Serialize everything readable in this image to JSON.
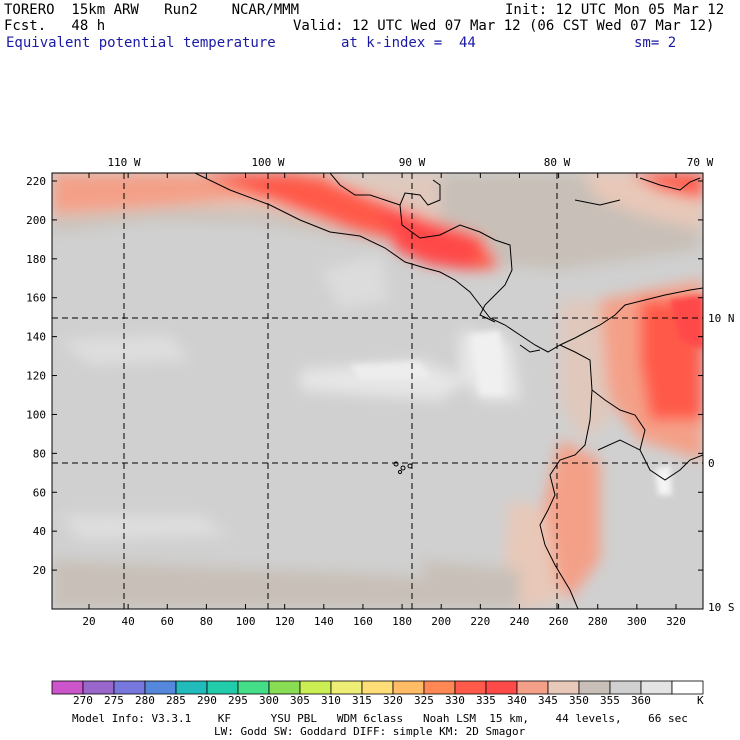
{
  "header": {
    "model": "TORERO  15km ARW   Run2    NCAR/MMM",
    "init": "Init: 12 UTC Mon 05 Mar 12",
    "fcst": "Fcst.   48 h",
    "valid": "Valid: 12 UTC Wed 07 Mar 12 (06 CST Wed 07 Mar 12)",
    "field": "Equivalent potential temperature",
    "level": "at k-index =  44",
    "smoothing": "sm= 2"
  },
  "map": {
    "top_labels": [
      "110 W",
      "100 W",
      "90 W",
      "80 W",
      "70 W"
    ],
    "right_labels": [
      "10 N",
      "0",
      "10 S"
    ],
    "y_ticks": [
      "20",
      "40",
      "60",
      "80",
      "100",
      "120",
      "140",
      "160",
      "180",
      "200",
      "220"
    ],
    "x_ticks": [
      "20",
      "40",
      "60",
      "80",
      "100",
      "120",
      "140",
      "160",
      "180",
      "200",
      "220",
      "240",
      "260",
      "280",
      "300",
      "320"
    ]
  },
  "colorbar": {
    "labels": [
      "270",
      "275",
      "280",
      "285",
      "290",
      "295",
      "300",
      "305",
      "310",
      "315",
      "320",
      "325",
      "330",
      "335",
      "340",
      "345",
      "350",
      "355",
      "360"
    ],
    "unit": "K",
    "colors": [
      "#cc55cc",
      "#9966cc",
      "#7777dd",
      "#5588dd",
      "#22bbbb",
      "#22ccaa",
      "#44dd88",
      "#88dd55",
      "#ccee55",
      "#eeee77",
      "#ffdd77",
      "#ffbb66",
      "#ff8855",
      "#ff5a4a",
      "#ff4a4a",
      "#f4a088",
      "#e8c8b8",
      "#c8c0b8",
      "#d0d0d0",
      "#e4e4e4",
      "#ffffff"
    ]
  },
  "footer": {
    "line1": "Model Info: V3.3.1    KF      YSU PBL   WDM 6class   Noah LSM  15 km,    44 levels,    66 sec",
    "line2": "LW: Godd SW: Goddard DIFF: simple KM: 2D Smagor"
  }
}
